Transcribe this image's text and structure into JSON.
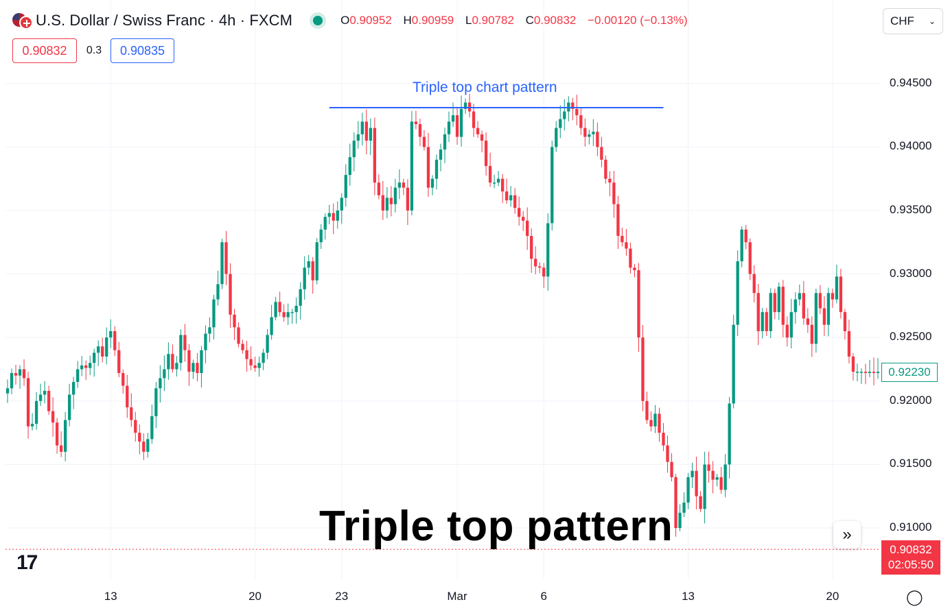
{
  "header": {
    "title": "U.S. Dollar / Swiss Franc · 4h · FXCM",
    "ohlc": {
      "o_key": "O",
      "o_val": "0.90952",
      "h_key": "H",
      "h_val": "0.90959",
      "l_key": "L",
      "l_val": "0.90782",
      "c_key": "C",
      "c_val": "0.90832",
      "change": "−0.00120 (−0.13%)"
    },
    "currency": "CHF",
    "sell_price": "0.90832",
    "spread": "0.3",
    "buy_price": "0.90835"
  },
  "price_axis": {
    "last_visible": "0.92230",
    "current_price": "0.90832",
    "countdown": "02:05:50"
  },
  "annotations": {
    "line_label": "Triple top chart pattern",
    "overlay_title": "Triple top pattern"
  },
  "colors": {
    "up": "#089981",
    "down": "#f23645",
    "trendline": "#2962ff",
    "grid": "#f0f3fa"
  },
  "chart_data": {
    "type": "candlestick",
    "title": "U.S. Dollar / Swiss Franc · 4h · FXCM",
    "ylim": [
      0.9058,
      0.9475
    ],
    "y_ticks": [
      "0.91000",
      "0.91500",
      "0.92000",
      "0.92500",
      "0.93000",
      "0.93500",
      "0.94000",
      "0.94500"
    ],
    "x_ticks": [
      {
        "label": "13",
        "bar": 25
      },
      {
        "label": "20",
        "bar": 60
      },
      {
        "label": "23",
        "bar": 81
      },
      {
        "label": "Mar",
        "bar": 109
      },
      {
        "label": "6",
        "bar": 130
      },
      {
        "label": "13",
        "bar": 165
      },
      {
        "label": "20",
        "bar": 200
      }
    ],
    "grid": true,
    "bar_count": 212,
    "trendline": {
      "from_bar": 78,
      "to_bar": 159,
      "price": 0.9431
    },
    "close": [
      0.921,
      0.9222,
      0.922,
      0.9225,
      0.9218,
      0.918,
      0.9182,
      0.92,
      0.9205,
      0.9208,
      0.9192,
      0.9183,
      0.9165,
      0.916,
      0.9185,
      0.9205,
      0.9215,
      0.9225,
      0.9228,
      0.9226,
      0.923,
      0.9238,
      0.9243,
      0.9235,
      0.925,
      0.9255,
      0.924,
      0.9222,
      0.9212,
      0.9195,
      0.9185,
      0.9175,
      0.9168,
      0.916,
      0.917,
      0.9188,
      0.921,
      0.9218,
      0.9225,
      0.9237,
      0.9225,
      0.923,
      0.9252,
      0.924,
      0.9223,
      0.923,
      0.9222,
      0.924,
      0.9253,
      0.9258,
      0.928,
      0.9292,
      0.9325,
      0.93,
      0.9268,
      0.9258,
      0.9245,
      0.924,
      0.9233,
      0.9228,
      0.9226,
      0.923,
      0.9238,
      0.9252,
      0.9266,
      0.9278,
      0.927,
      0.9266,
      0.927,
      0.927,
      0.9275,
      0.9288,
      0.9305,
      0.931,
      0.9295,
      0.9325,
      0.9335,
      0.9345,
      0.9348,
      0.9342,
      0.935,
      0.936,
      0.9378,
      0.9392,
      0.9405,
      0.941,
      0.942,
      0.9405,
      0.9415,
      0.9372,
      0.9362,
      0.935,
      0.936,
      0.9355,
      0.9368,
      0.9372,
      0.9368,
      0.935,
      0.942,
      0.9418,
      0.9408,
      0.94,
      0.9368,
      0.9375,
      0.939,
      0.9398,
      0.941,
      0.942,
      0.9425,
      0.9408,
      0.943,
      0.9435,
      0.9428,
      0.9415,
      0.941,
      0.9405,
      0.9385,
      0.9372,
      0.9372,
      0.9375,
      0.9365,
      0.9358,
      0.9362,
      0.9352,
      0.9345,
      0.9342,
      0.933,
      0.9312,
      0.9306,
      0.9305,
      0.9298,
      0.934,
      0.94,
      0.9415,
      0.9422,
      0.9428,
      0.9435,
      0.943,
      0.9425,
      0.9415,
      0.9408,
      0.941,
      0.9412,
      0.94,
      0.939,
      0.9375,
      0.9372,
      0.9355,
      0.933,
      0.9325,
      0.932,
      0.9305,
      0.9303,
      0.925,
      0.92,
      0.9185,
      0.918,
      0.919,
      0.9175,
      0.9165,
      0.9152,
      0.914,
      0.91,
      0.9112,
      0.912,
      0.914,
      0.9145,
      0.9125,
      0.9115,
      0.915,
      0.9145,
      0.9138,
      0.914,
      0.913,
      0.915,
      0.9198,
      0.926,
      0.931,
      0.9335,
      0.9325,
      0.93,
      0.9285,
      0.9255,
      0.927,
      0.9255,
      0.9285,
      0.927,
      0.929,
      0.926,
      0.925,
      0.927,
      0.928,
      0.9285,
      0.9265,
      0.926,
      0.9245,
      0.9285,
      0.9273,
      0.926,
      0.9285,
      0.928,
      0.9298,
      0.927,
      0.9255,
      0.9235,
      0.9223,
      0.9223,
      0.9223,
      0.9222,
      0.9223,
      0.9222,
      0.9223
    ]
  }
}
